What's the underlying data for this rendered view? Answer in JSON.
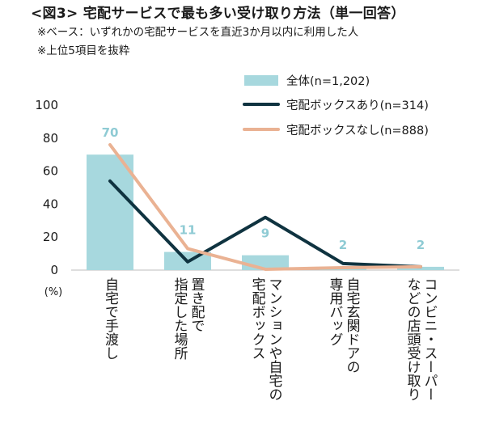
{
  "header": {
    "title": "<図3> 宅配サービスで最も多い受け取り方法（単一回答）",
    "note1": "※ベース：いずれかの宅配サービスを直近3か月以内に利用した人",
    "note2": "※上位5項目を抜粋"
  },
  "chart_data": {
    "type": "bar",
    "categories": [
      [
        "自宅で手渡し"
      ],
      [
        "置き配で",
        "指定した場所"
      ],
      [
        "マンションや自宅の",
        "宅配ボックス"
      ],
      [
        "自宅玄関ドアの",
        "専用バッグ"
      ],
      [
        "コンビニ・スーパー",
        "などの店頭受け取り"
      ]
    ],
    "series": [
      {
        "name": "全体(n=1,202)",
        "kind": "bar",
        "color": "#a7d8de",
        "values": [
          70,
          11,
          9,
          2,
          2
        ]
      },
      {
        "name": "宅配ボックスあり(n=314)",
        "kind": "line",
        "color": "#0f3340",
        "values": [
          54,
          5,
          32,
          4,
          2
        ]
      },
      {
        "name": "宅配ボックスなし(n=888)",
        "kind": "line",
        "color": "#eab293",
        "values": [
          76,
          13,
          0.5,
          1.5,
          2
        ]
      }
    ],
    "data_labels": [
      "70",
      "11",
      "9",
      "2",
      "2"
    ],
    "yticks": [
      "0",
      "20",
      "40",
      "60",
      "80",
      "100"
    ],
    "ylim": [
      0,
      100
    ],
    "unit_label": "(%)",
    "legend_position": "top-right"
  }
}
